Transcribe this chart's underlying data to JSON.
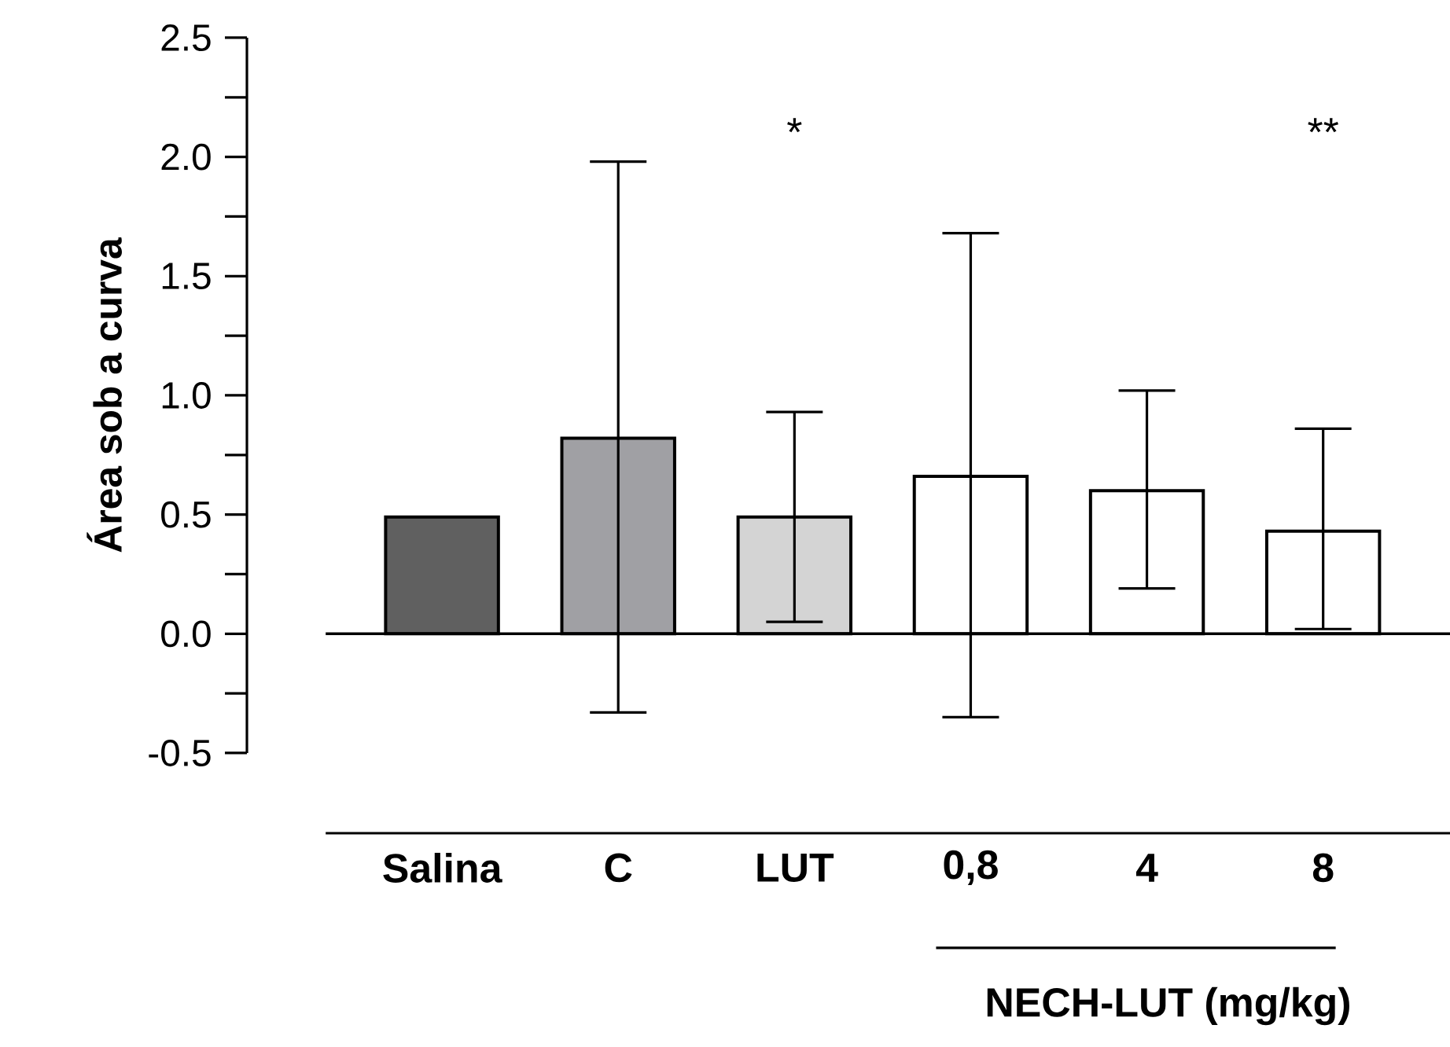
{
  "chart_data": {
    "type": "bar",
    "ylabel": "Área sob a curva",
    "categories": [
      "Salina",
      "C",
      "LUT",
      "0,8",
      "4",
      "8"
    ],
    "values": [
      0.49,
      0.82,
      0.49,
      0.66,
      0.6,
      0.43
    ],
    "colors": [
      "#606060",
      "#a0a0a4",
      "#d4d4d4",
      "#ffffff",
      "#ffffff",
      "#ffffff"
    ],
    "errors": [
      null,
      [
        -0.33,
        1.98
      ],
      [
        0.05,
        0.93
      ],
      [
        -0.35,
        1.68
      ],
      [
        0.19,
        1.02
      ],
      [
        0.02,
        0.86
      ]
    ],
    "ylim": [
      -0.5,
      2.5
    ],
    "yticks": [
      {
        "value": -0.5,
        "label": "-0.5"
      },
      {
        "value": 0,
        "label": "0.0"
      },
      {
        "value": 0.5,
        "label": "0.5"
      },
      {
        "value": 1,
        "label": "1.0"
      },
      {
        "value": 1.5,
        "label": "1.5"
      },
      {
        "value": 2,
        "label": "2.0"
      },
      {
        "value": 2.5,
        "label": "2.5"
      }
    ],
    "annotations": [
      "*",
      "**",
      "NECH-LUT (mg/kg)"
    ],
    "grid": false
  }
}
